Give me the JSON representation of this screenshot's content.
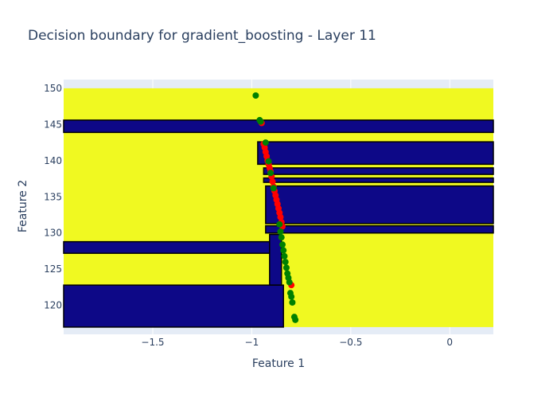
{
  "chart_data": {
    "type": "scatter",
    "title": "Decision boundary for gradient_boosting - Layer 11",
    "xlabel": "Feature 1",
    "ylabel": "Feature 2",
    "xlim": [
      -1.95,
      0.22
    ],
    "ylim": [
      116.0,
      151.2
    ],
    "x_ticks": [
      -1.5,
      -1,
      -0.5,
      0
    ],
    "x_tick_labels": [
      "−1.5",
      "−1",
      "−0.5",
      "0"
    ],
    "y_ticks": [
      120,
      125,
      130,
      135,
      140,
      145,
      150
    ],
    "y_tick_labels": [
      "120",
      "125",
      "130",
      "135",
      "140",
      "145",
      "150"
    ],
    "grid": true,
    "background_color": "#e5ecf6",
    "region_colors": {
      "class_0": "#0d0887",
      "class_1": "#f0f921"
    },
    "contour_line_color": "#000000",
    "region_y_range": [
      117.0,
      150.0
    ],
    "regions": [
      {
        "class": "class_0",
        "x0": -1.95,
        "x1": 0.22,
        "y0": 143.9,
        "y1": 145.6
      },
      {
        "class": "class_0",
        "x0": -0.97,
        "x1": 0.22,
        "y0": 139.5,
        "y1": 142.6
      },
      {
        "class": "class_0",
        "x0": -0.94,
        "x1": 0.22,
        "y0": 138.1,
        "y1": 139.0
      },
      {
        "class": "class_0",
        "x0": -0.94,
        "x1": 0.22,
        "y0": 137.0,
        "y1": 137.6
      },
      {
        "class": "class_0",
        "x0": -0.93,
        "x1": 0.22,
        "y0": 131.3,
        "y1": 136.5
      },
      {
        "class": "class_0",
        "x0": -0.93,
        "x1": 0.22,
        "y0": 130.0,
        "y1": 131.0
      },
      {
        "class": "class_0",
        "x0": -1.95,
        "x1": -0.88,
        "y0": 127.2,
        "y1": 128.8
      },
      {
        "class": "class_0",
        "x0": -0.91,
        "x1": -0.85,
        "y0": 122.8,
        "y1": 129.8
      },
      {
        "class": "class_0",
        "x0": -1.95,
        "x1": -0.84,
        "y0": 117.0,
        "y1": 122.8
      }
    ],
    "series": [
      {
        "color": "#ff0000",
        "x": [
          -0.95,
          -0.94,
          -0.935,
          -0.93,
          -0.925,
          -0.92,
          -0.915,
          -0.91,
          -0.905,
          -0.9,
          -0.895,
          -0.89,
          -0.885,
          -0.88,
          -0.875,
          -0.87,
          -0.865,
          -0.86,
          -0.855,
          -0.85,
          -0.845,
          -0.8
        ],
        "y": [
          145.2,
          142.3,
          141.8,
          141.2,
          140.6,
          140.0,
          139.5,
          139.0,
          138.5,
          137.8,
          137.1,
          136.4,
          135.8,
          135.2,
          134.6,
          134.0,
          133.4,
          132.8,
          132.2,
          131.5,
          130.9,
          122.8
        ]
      },
      {
        "color": "#008000",
        "x": [
          -0.98,
          -0.96,
          -0.955,
          -0.93,
          -0.915,
          -0.905,
          -0.89,
          -0.86,
          -0.855,
          -0.85,
          -0.845,
          -0.84,
          -0.835,
          -0.83,
          -0.825,
          -0.82,
          -0.815,
          -0.81,
          -0.805,
          -0.8,
          -0.795,
          -0.785,
          -0.78
        ],
        "y": [
          149.0,
          145.6,
          145.4,
          142.5,
          139.9,
          138.3,
          136.2,
          131.2,
          130.2,
          129.4,
          128.4,
          127.6,
          126.8,
          126.0,
          125.2,
          124.4,
          123.8,
          123.2,
          121.7,
          121.2,
          120.4,
          118.4,
          118.0
        ]
      }
    ]
  }
}
